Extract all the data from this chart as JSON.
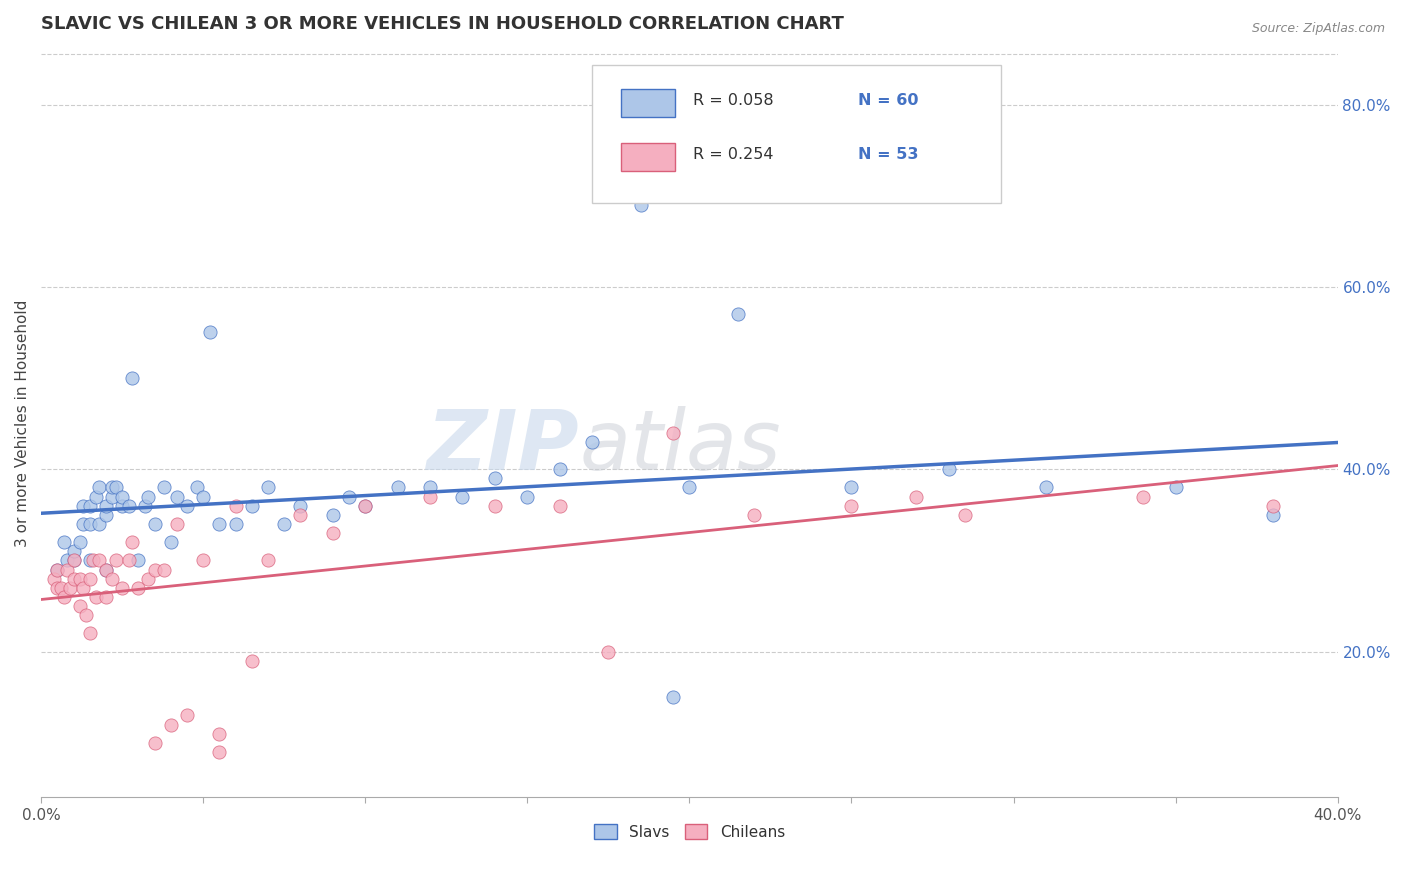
{
  "title": "SLAVIC VS CHILEAN 3 OR MORE VEHICLES IN HOUSEHOLD CORRELATION CHART",
  "source_text": "Source: ZipAtlas.com",
  "ylabel": "3 or more Vehicles in Household",
  "right_yticks": [
    "20.0%",
    "40.0%",
    "60.0%",
    "80.0%"
  ],
  "right_ytick_vals": [
    0.2,
    0.4,
    0.6,
    0.8
  ],
  "xmin": 0.0,
  "xmax": 0.4,
  "ymin": 0.04,
  "ymax": 0.86,
  "legend_R": [
    "R = 0.058",
    "R = 0.254"
  ],
  "legend_N": [
    "N = 60",
    "N = 53"
  ],
  "slav_color": "#adc6e8",
  "chilean_color": "#f5afc0",
  "slav_line_color": "#4472c4",
  "chilean_line_color": "#d9607a",
  "watermark_zip": "ZIP",
  "watermark_atlas": "atlas",
  "slav_x": [
    0.005,
    0.007,
    0.008,
    0.01,
    0.01,
    0.012,
    0.013,
    0.013,
    0.015,
    0.015,
    0.015,
    0.017,
    0.018,
    0.018,
    0.02,
    0.02,
    0.02,
    0.022,
    0.022,
    0.023,
    0.025,
    0.025,
    0.027,
    0.028,
    0.03,
    0.032,
    0.033,
    0.035,
    0.038,
    0.04,
    0.042,
    0.045,
    0.048,
    0.05,
    0.052,
    0.055,
    0.06,
    0.065,
    0.07,
    0.075,
    0.08,
    0.09,
    0.095,
    0.1,
    0.11,
    0.12,
    0.13,
    0.14,
    0.15,
    0.16,
    0.17,
    0.185,
    0.2,
    0.215,
    0.25,
    0.28,
    0.31,
    0.35,
    0.38,
    0.195
  ],
  "slav_y": [
    0.29,
    0.32,
    0.3,
    0.3,
    0.31,
    0.32,
    0.34,
    0.36,
    0.3,
    0.34,
    0.36,
    0.37,
    0.34,
    0.38,
    0.29,
    0.35,
    0.36,
    0.37,
    0.38,
    0.38,
    0.36,
    0.37,
    0.36,
    0.5,
    0.3,
    0.36,
    0.37,
    0.34,
    0.38,
    0.32,
    0.37,
    0.36,
    0.38,
    0.37,
    0.55,
    0.34,
    0.34,
    0.36,
    0.38,
    0.34,
    0.36,
    0.35,
    0.37,
    0.36,
    0.38,
    0.38,
    0.37,
    0.39,
    0.37,
    0.4,
    0.43,
    0.69,
    0.38,
    0.57,
    0.38,
    0.4,
    0.38,
    0.38,
    0.35,
    0.15
  ],
  "chilean_x": [
    0.004,
    0.005,
    0.005,
    0.006,
    0.007,
    0.008,
    0.009,
    0.01,
    0.01,
    0.012,
    0.012,
    0.013,
    0.014,
    0.015,
    0.015,
    0.016,
    0.017,
    0.018,
    0.02,
    0.02,
    0.022,
    0.023,
    0.025,
    0.027,
    0.028,
    0.03,
    0.033,
    0.035,
    0.038,
    0.042,
    0.05,
    0.06,
    0.07,
    0.08,
    0.09,
    0.1,
    0.12,
    0.14,
    0.16,
    0.175,
    0.195,
    0.22,
    0.25,
    0.27,
    0.285,
    0.34,
    0.38,
    0.065,
    0.035,
    0.04,
    0.055,
    0.055,
    0.045
  ],
  "chilean_y": [
    0.28,
    0.27,
    0.29,
    0.27,
    0.26,
    0.29,
    0.27,
    0.28,
    0.3,
    0.25,
    0.28,
    0.27,
    0.24,
    0.22,
    0.28,
    0.3,
    0.26,
    0.3,
    0.26,
    0.29,
    0.28,
    0.3,
    0.27,
    0.3,
    0.32,
    0.27,
    0.28,
    0.29,
    0.29,
    0.34,
    0.3,
    0.36,
    0.3,
    0.35,
    0.33,
    0.36,
    0.37,
    0.36,
    0.36,
    0.2,
    0.44,
    0.35,
    0.36,
    0.37,
    0.35,
    0.37,
    0.36,
    0.19,
    0.1,
    0.12,
    0.09,
    0.11,
    0.13
  ]
}
